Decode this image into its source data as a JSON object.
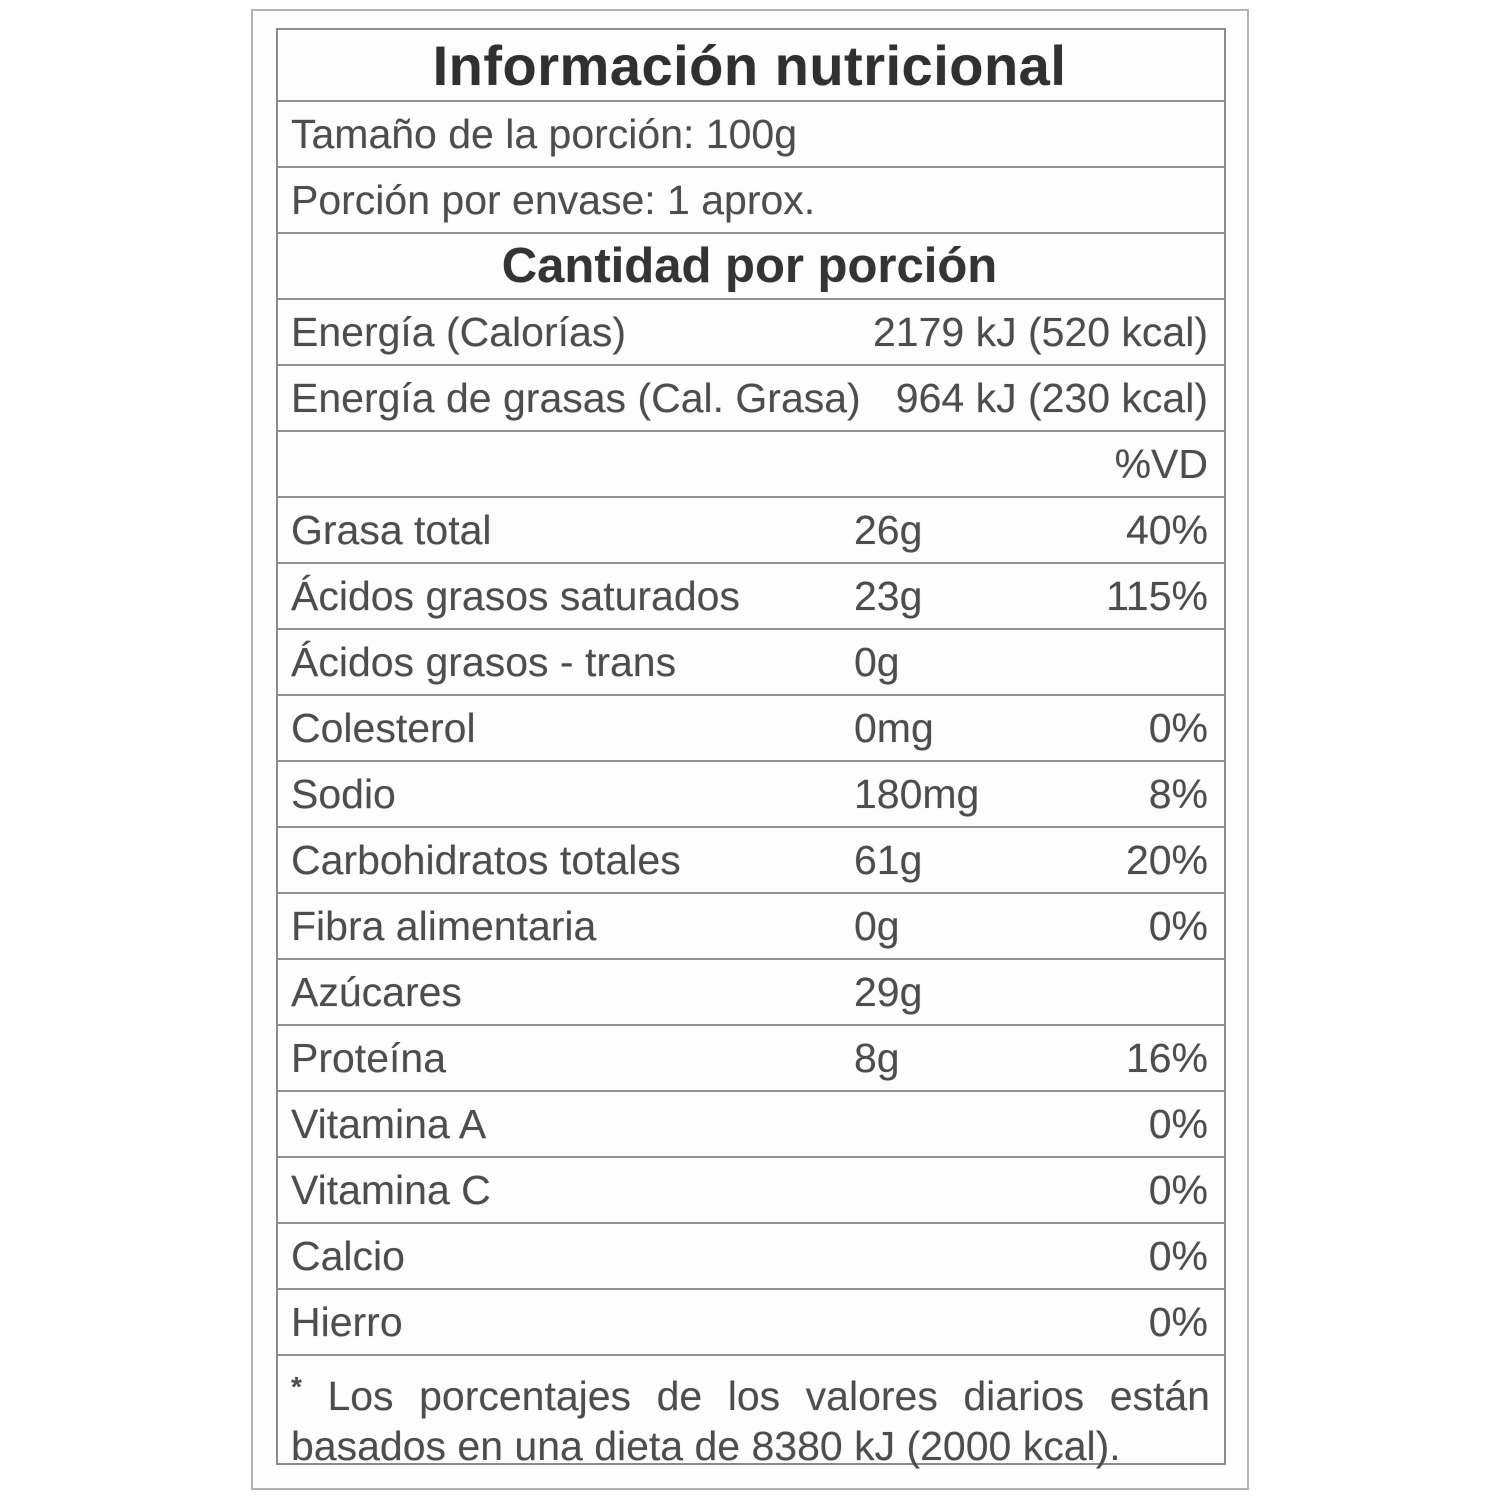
{
  "colors": {
    "text": "#4d4d4d",
    "title_text": "#303030",
    "table_border": "#8c8c8c",
    "outer_border": "#b3b3b3",
    "background": "#ffffff"
  },
  "nutrition_label": {
    "title": "Información nutricional",
    "serving_size": "Tamaño de la porción: 100g",
    "servings_per_container": "Porción por envase: 1 aprox.",
    "section_header": "Cantidad por porción",
    "energy": [
      {
        "name": "Energía (Calorías)",
        "value": "2179 kJ (520 kcal)"
      },
      {
        "name": "Energía de grasas (Cal. Grasa)",
        "value": "964 kJ (230 kcal)"
      }
    ],
    "daily_value_header": "%VD",
    "nutrients": [
      {
        "name": "Grasa total",
        "amount": "26g",
        "dv": "40%"
      },
      {
        "name": "Ácidos grasos saturados",
        "amount": "23g",
        "dv": "115%"
      },
      {
        "name": "Ácidos grasos - trans",
        "amount": "0g",
        "dv": ""
      },
      {
        "name": "Colesterol",
        "amount": "0mg",
        "dv": "0%"
      },
      {
        "name": "Sodio",
        "amount": "180mg",
        "dv": "8%"
      },
      {
        "name": "Carbohidratos totales",
        "amount": "61g",
        "dv": "20%"
      },
      {
        "name": "Fibra alimentaria",
        "amount": "0g",
        "dv": "0%"
      },
      {
        "name": "Azúcares",
        "amount": "29g",
        "dv": ""
      },
      {
        "name": "Proteína",
        "amount": "8g",
        "dv": "16%"
      },
      {
        "name": "Vitamina A",
        "amount": "",
        "dv": "0%"
      },
      {
        "name": "Vitamina C",
        "amount": "",
        "dv": "0%"
      },
      {
        "name": "Calcio",
        "amount": "",
        "dv": "0%"
      },
      {
        "name": "Hierro",
        "amount": "",
        "dv": "0%"
      }
    ],
    "footnote": {
      "marker": "*",
      "line1": "Los porcentajes de los valores diarios están",
      "line2": "basados en una dieta de 8380 kJ (2000 kcal)."
    }
  }
}
